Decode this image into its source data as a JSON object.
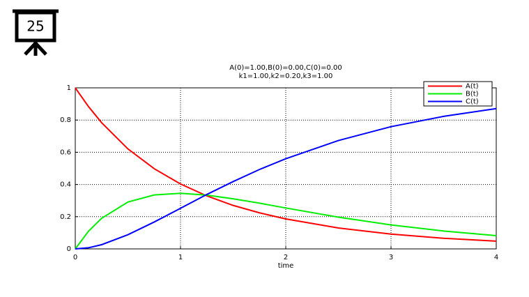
{
  "slide_number": "25",
  "chart_data": {
    "type": "line",
    "title": "A(0)=1.00,B(0)=0.00,C(0)=0.00",
    "subtitle": "k1=1.00,k2=0.20,k3=1.00",
    "x_label": "time",
    "x": [
      0,
      0.125,
      0.25,
      0.5,
      0.75,
      1,
      1.25,
      1.5,
      1.75,
      2,
      2.5,
      3,
      3.5,
      4
    ],
    "series": [
      {
        "name": "A(t)",
        "color": "#ff0000",
        "values": [
          1,
          0.884,
          0.784,
          0.621,
          0.498,
          0.403,
          0.329,
          0.27,
          0.224,
          0.186,
          0.13,
          0.092,
          0.066,
          0.048
        ]
      },
      {
        "name": "B(t)",
        "color": "#00ee00",
        "values": [
          0,
          0.109,
          0.19,
          0.291,
          0.335,
          0.345,
          0.334,
          0.311,
          0.284,
          0.254,
          0.197,
          0.149,
          0.111,
          0.082
        ]
      },
      {
        "name": "C(t)",
        "color": "#0000ff",
        "values": [
          0,
          0.007,
          0.026,
          0.088,
          0.167,
          0.252,
          0.338,
          0.418,
          0.493,
          0.56,
          0.673,
          0.759,
          0.823,
          0.871
        ]
      }
    ],
    "xlim": [
      0,
      4
    ],
    "xticks": [
      0,
      1,
      2,
      3,
      4
    ],
    "ylim": [
      0,
      1
    ],
    "yticks": [
      0,
      0.2,
      0.4,
      0.6,
      0.8,
      1
    ],
    "grid": true,
    "legend": "top-right"
  }
}
